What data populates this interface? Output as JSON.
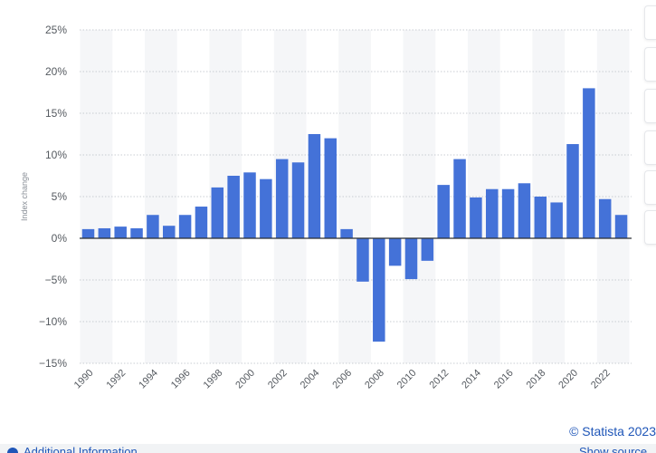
{
  "chart_data": {
    "type": "bar",
    "ylabel": "Index change",
    "ylim": [
      -15,
      25
    ],
    "y_ticks": [
      25,
      20,
      15,
      10,
      5,
      0,
      -5,
      -10,
      -15
    ],
    "y_tick_labels": [
      "25%",
      "20%",
      "15%",
      "10%",
      "5%",
      "0%",
      "−5%",
      "−10%",
      "−15%"
    ],
    "x_tick_labels": [
      "1990",
      "1992",
      "1994",
      "1996",
      "1998",
      "2000",
      "2002",
      "2004",
      "2006",
      "2008",
      "2010",
      "2012",
      "2014",
      "2016",
      "2018",
      "2020",
      "2022"
    ],
    "categories": [
      "1990",
      "1991",
      "1992",
      "1993",
      "1994",
      "1995",
      "1996",
      "1997",
      "1998",
      "1999",
      "2000",
      "2001",
      "2002",
      "2003",
      "2004",
      "2005",
      "2006",
      "2007",
      "2008",
      "2009",
      "2010",
      "2011",
      "2012",
      "2013",
      "2014",
      "2015",
      "2016",
      "2017",
      "2018",
      "2019",
      "2020",
      "2021",
      "2022",
      "2023"
    ],
    "values": [
      1.1,
      1.2,
      1.4,
      1.2,
      2.8,
      1.5,
      2.8,
      3.8,
      6.1,
      7.5,
      7.9,
      7.1,
      9.5,
      9.1,
      12.5,
      12.0,
      1.1,
      -5.2,
      -12.4,
      -3.3,
      -4.9,
      -2.7,
      6.4,
      9.5,
      4.9,
      5.9,
      5.9,
      6.6,
      5.0,
      4.3,
      11.3,
      18.0,
      4.7,
      2.8
    ],
    "bar_color": "#4472d8",
    "band_color": "#f5f6f8",
    "grid": true
  },
  "footer": {
    "credit": "© Statista 2023",
    "additional_info": "Additional Information",
    "show_source": "Show source"
  },
  "side_toolbar": {
    "icons": [
      "bell-icon",
      "star-icon",
      "settings-icon",
      "share-icon",
      "quote-icon",
      "print-icon"
    ]
  }
}
